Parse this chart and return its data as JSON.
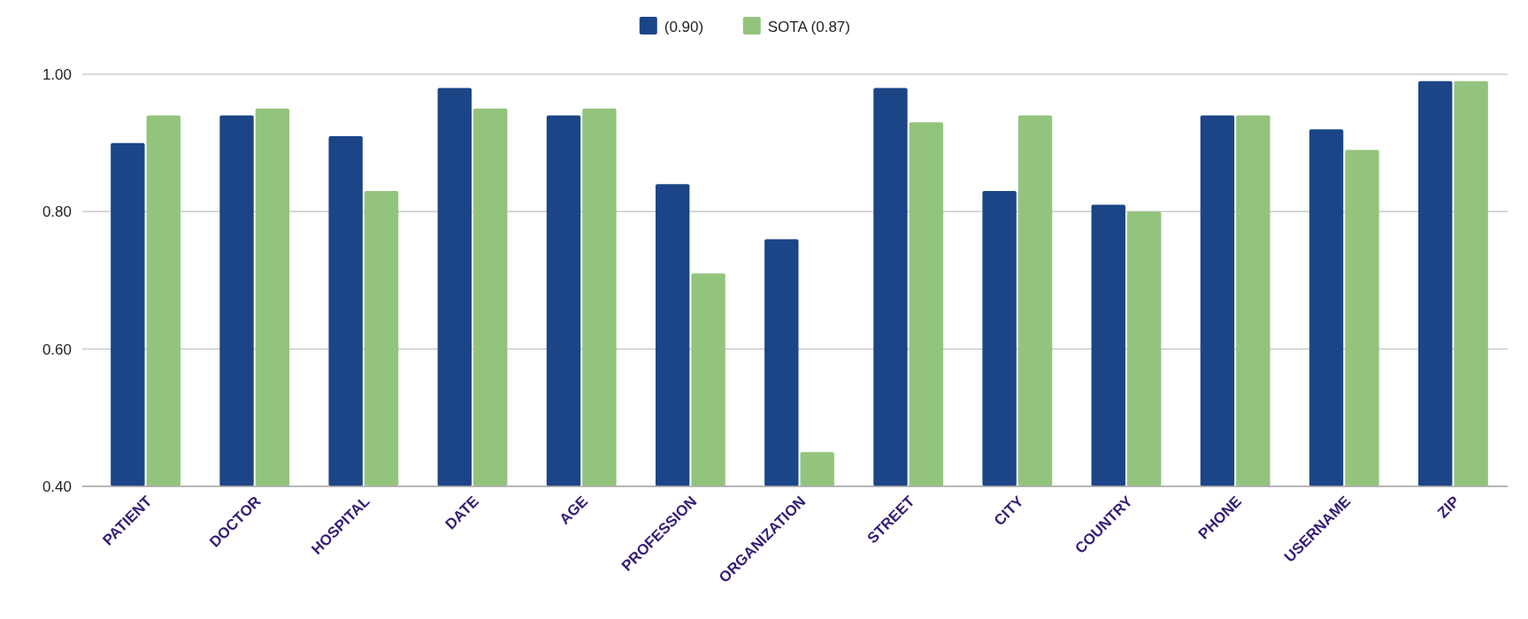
{
  "chart_data": {
    "type": "bar",
    "categories": [
      "PATIENT",
      "DOCTOR",
      "HOSPITAL",
      "DATE",
      "AGE",
      "PROFESSION",
      "ORGANIZATION",
      "STREET",
      "CITY",
      "COUNTRY",
      "PHONE",
      "USERNAME",
      "ZIP"
    ],
    "series": [
      {
        "name": "(0.90)",
        "color": "#1c4587",
        "values": [
          0.9,
          0.94,
          0.91,
          0.98,
          0.94,
          0.84,
          0.76,
          0.98,
          0.83,
          0.81,
          0.94,
          0.92,
          0.99
        ]
      },
      {
        "name": "SOTA (0.87)",
        "color": "#93c47d",
        "values": [
          0.94,
          0.95,
          0.83,
          0.95,
          0.95,
          0.71,
          0.45,
          0.93,
          0.94,
          0.8,
          0.94,
          0.89,
          0.99
        ]
      }
    ],
    "ylim": [
      0.4,
      1.0
    ],
    "yticks": [
      {
        "value": 0.4,
        "label": "0.40"
      },
      {
        "value": 0.6,
        "label": "0.60"
      },
      {
        "value": 0.8,
        "label": "0.80"
      },
      {
        "value": 1.0,
        "label": "1.00"
      }
    ],
    "grid": "y",
    "legend": "top"
  }
}
